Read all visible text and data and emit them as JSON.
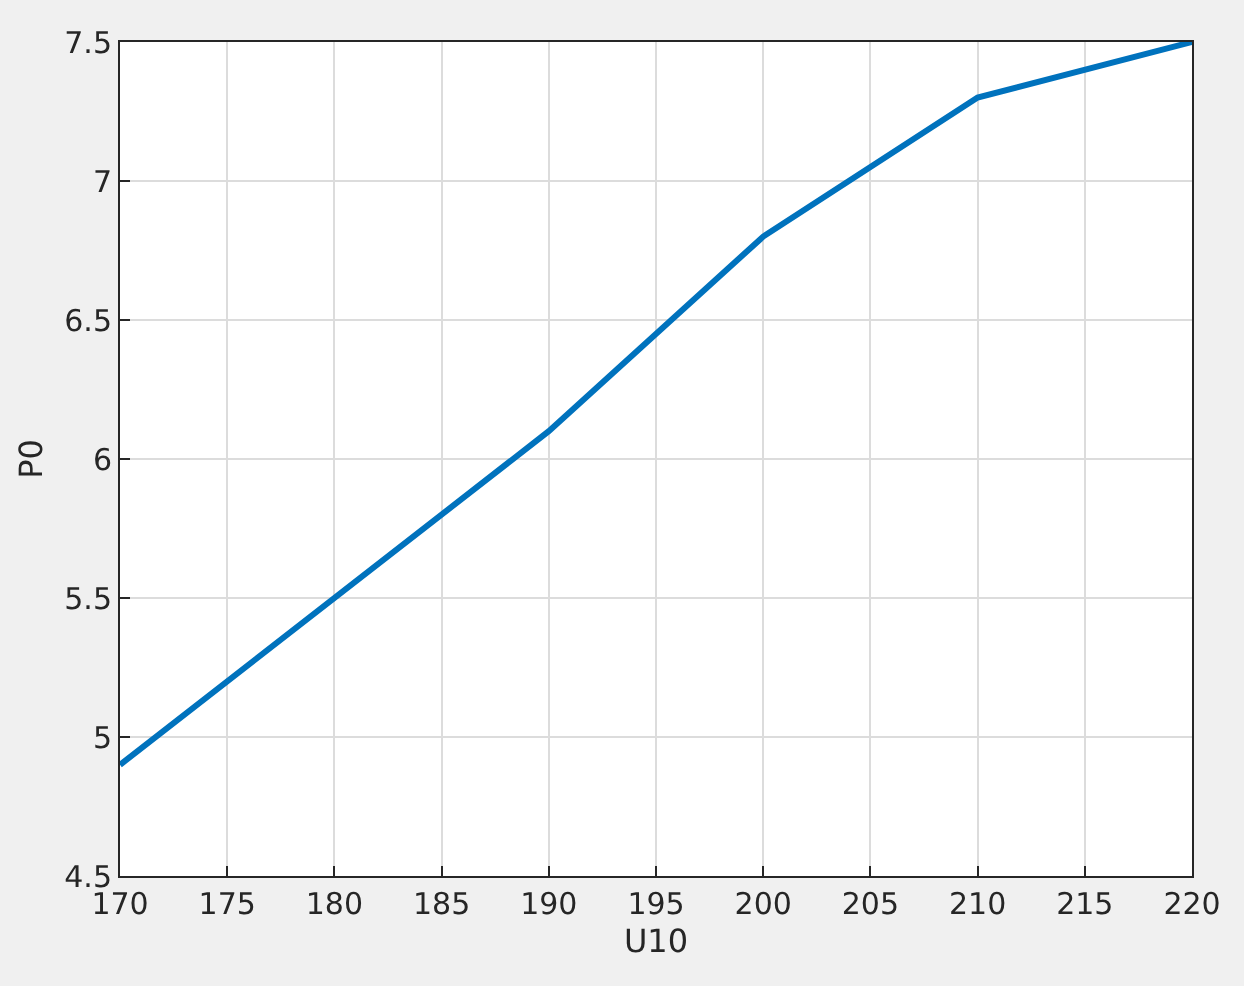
{
  "chart_data": {
    "type": "line",
    "xlabel": "U10",
    "ylabel": "P0",
    "x": [
      170,
      190,
      200,
      210,
      220
    ],
    "series": [
      {
        "color": "#0072bd",
        "values": [
          4.9,
          6.1,
          6.8,
          7.3,
          7.5
        ]
      }
    ],
    "xlim": [
      170,
      220
    ],
    "xticks": [
      170,
      175,
      180,
      185,
      190,
      195,
      200,
      205,
      210,
      215,
      220
    ],
    "ylim": [
      4.5,
      7.5
    ],
    "yticks": [
      4.5,
      5,
      5.5,
      6,
      6.5,
      7,
      7.5
    ],
    "grid": true,
    "marker": "none",
    "line_style": "solid"
  }
}
